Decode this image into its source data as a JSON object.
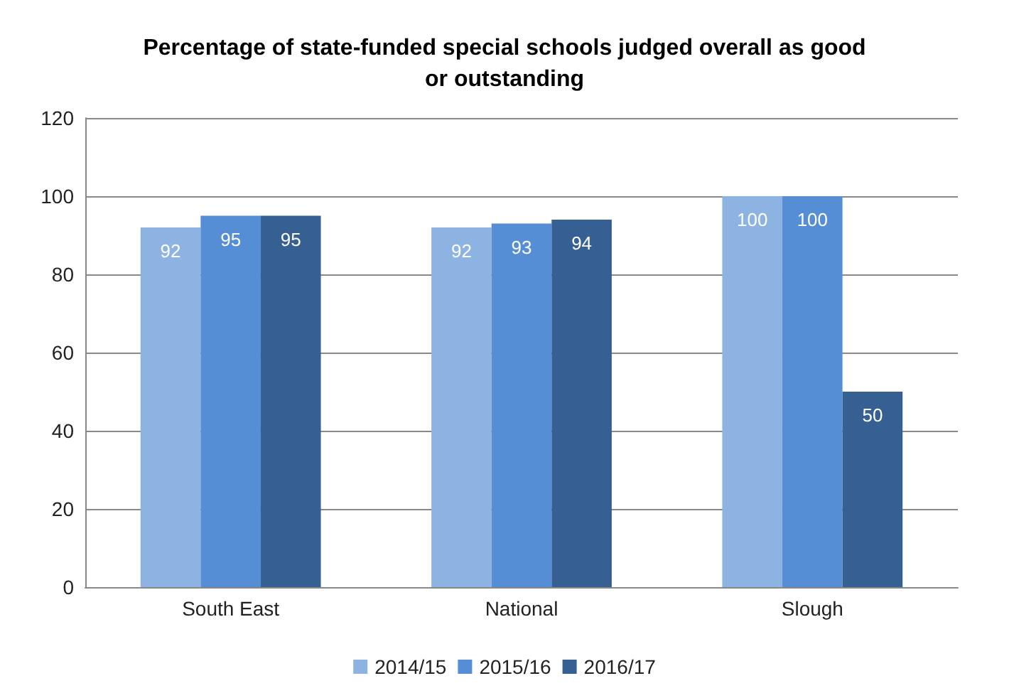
{
  "chart_data": {
    "type": "bar",
    "title": "Percentage of state-funded special schools judged overall as good\nor outstanding",
    "categories": [
      "South East",
      "National",
      "Slough"
    ],
    "series": [
      {
        "name": "2014/15",
        "color": "#8db3e2",
        "values": [
          92,
          92,
          100
        ]
      },
      {
        "name": "2015/16",
        "color": "#558ed5",
        "values": [
          95,
          93,
          100
        ]
      },
      {
        "name": "2016/17",
        "color": "#376092",
        "values": [
          95,
          94,
          50
        ]
      }
    ],
    "ylim": [
      0,
      120
    ],
    "yticks": [
      0,
      20,
      40,
      60,
      80,
      100,
      120
    ],
    "grid": "y",
    "legend": "bottom",
    "data_labels": true
  }
}
